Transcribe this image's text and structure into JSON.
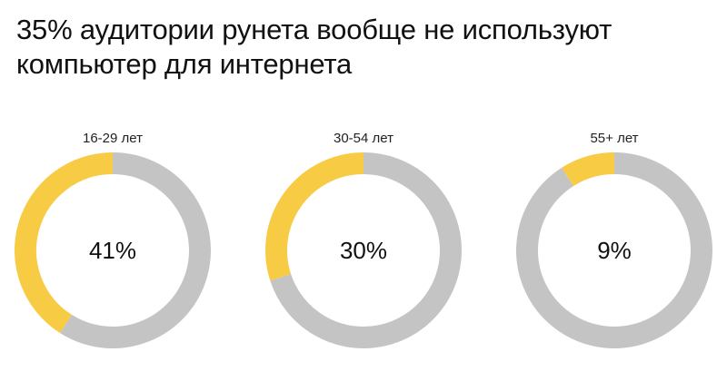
{
  "title": {
    "line1": "35% аудитории рунета вообще не используют",
    "line2": "компьютер для интернета"
  },
  "colors": {
    "highlight": "#F8CB45",
    "rest": "#C4C4C4"
  },
  "chart_data": [
    {
      "type": "pie",
      "title": "16-29 лет",
      "value_label": "41%",
      "values": [
        41,
        59
      ],
      "categories": [
        "",
        ""
      ]
    },
    {
      "type": "pie",
      "title": "30-54 лет",
      "value_label": "30%",
      "values": [
        30,
        70
      ],
      "categories": [
        "",
        ""
      ]
    },
    {
      "type": "pie",
      "title": "55+ лет",
      "value_label": "9%",
      "values": [
        9,
        91
      ],
      "categories": [
        "",
        ""
      ]
    }
  ]
}
